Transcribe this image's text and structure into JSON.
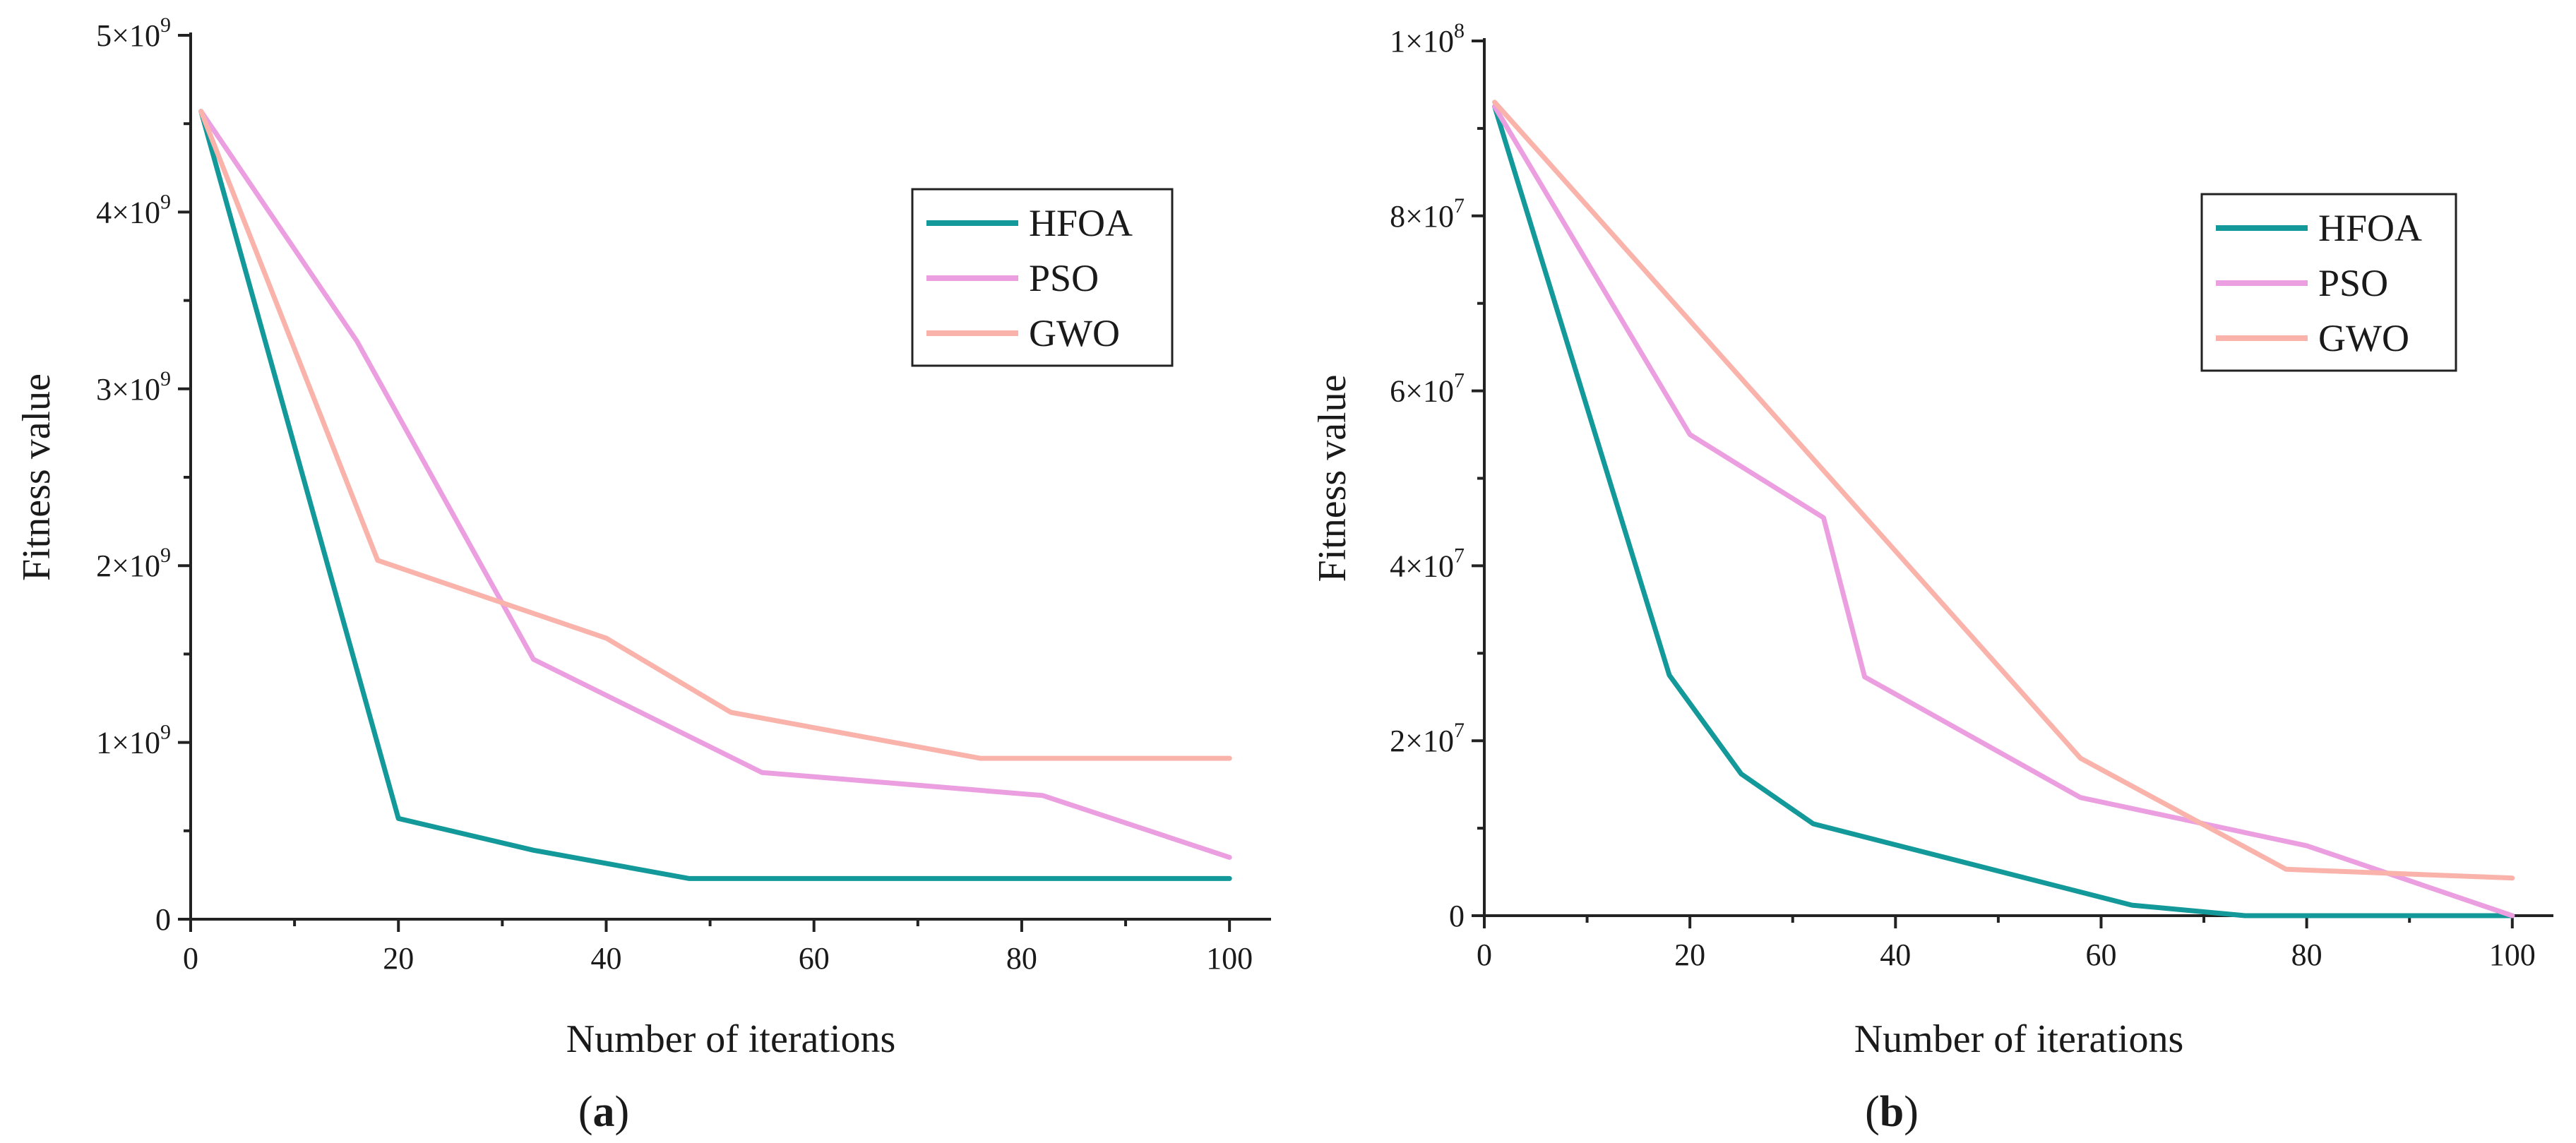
{
  "colors": {
    "HFOA": "#13999a",
    "PSO": "#ec9fe0",
    "GWO": "#f9b3ab"
  },
  "chart_data": [
    {
      "id": "a",
      "type": "line",
      "panel_label": {
        "open": "(",
        "letter": "a",
        "close": ")"
      },
      "xlabel": "Number of iterations",
      "ylabel": "Fitness value",
      "xlim": [
        0,
        104
      ],
      "ylim": [
        0,
        5000000000
      ],
      "xticks": [
        0,
        20,
        40,
        60,
        80,
        100
      ],
      "xtick_labels": [
        "0",
        "20",
        "40",
        "60",
        "80",
        "100"
      ],
      "yticks": [
        0,
        1000000000,
        2000000000,
        3000000000,
        4000000000,
        5000000000
      ],
      "ytick_labels": [
        {
          "base": "0",
          "exp": ""
        },
        {
          "base": "1×10",
          "exp": "9"
        },
        {
          "base": "2×10",
          "exp": "9"
        },
        {
          "base": "3×10",
          "exp": "9"
        },
        {
          "base": "4×10",
          "exp": "9"
        },
        {
          "base": "5×10",
          "exp": "9"
        }
      ],
      "legend_position": "top-right",
      "series": [
        {
          "name": "HFOA",
          "x": [
            1,
            20,
            33,
            48,
            60,
            80,
            100
          ],
          "y": [
            4570000000,
            570000000,
            390000000,
            230000000,
            230000000,
            230000000,
            230000000
          ]
        },
        {
          "name": "PSO",
          "x": [
            1,
            16,
            33,
            55,
            82,
            100
          ],
          "y": [
            4570000000,
            3270000000,
            1470000000,
            830000000,
            700000000,
            350000000
          ]
        },
        {
          "name": "GWO",
          "x": [
            1,
            18,
            40,
            52,
            76,
            100
          ],
          "y": [
            4570000000,
            2030000000,
            1590000000,
            1170000000,
            910000000,
            910000000
          ]
        }
      ]
    },
    {
      "id": "b",
      "type": "line",
      "panel_label": {
        "open": "(",
        "letter": "b",
        "close": ")"
      },
      "xlabel": "Number of iterations",
      "ylabel": "Fitness value",
      "xlim": [
        0,
        104
      ],
      "ylim": [
        0,
        100000000
      ],
      "xticks": [
        0,
        20,
        40,
        60,
        80,
        100
      ],
      "xtick_labels": [
        "0",
        "20",
        "40",
        "60",
        "80",
        "100"
      ],
      "yticks": [
        0,
        20000000,
        40000000,
        60000000,
        80000000,
        100000000
      ],
      "ytick_labels": [
        {
          "base": "0",
          "exp": ""
        },
        {
          "base": "2×10",
          "exp": "7"
        },
        {
          "base": "4×10",
          "exp": "7"
        },
        {
          "base": "6×10",
          "exp": "7"
        },
        {
          "base": "8×10",
          "exp": "7"
        },
        {
          "base": "1×10",
          "exp": "8"
        }
      ],
      "legend_position": "top-right",
      "series": [
        {
          "name": "HFOA",
          "x": [
            1,
            18,
            25,
            32,
            63,
            74,
            100
          ],
          "y": [
            92500000,
            27500000,
            16200000,
            10500000,
            1200000,
            0,
            0
          ]
        },
        {
          "name": "PSO",
          "x": [
            1,
            20,
            33,
            37,
            58,
            80,
            100
          ],
          "y": [
            92500000,
            55000000,
            45500000,
            27300000,
            13500000,
            8000000,
            0
          ]
        },
        {
          "name": "GWO",
          "x": [
            1,
            58,
            78,
            100
          ],
          "y": [
            93000000,
            18000000,
            5300000,
            4300000
          ]
        }
      ]
    }
  ]
}
